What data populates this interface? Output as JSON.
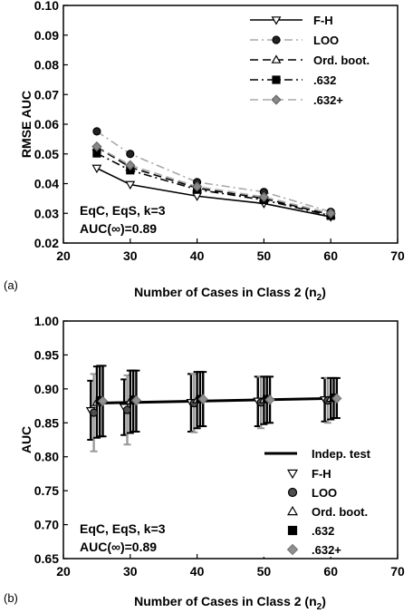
{
  "chart_data": [
    {
      "panel_label": "(a)",
      "type": "line",
      "xlabel": "Number of Cases in Class 2 (n",
      "xlabel_sub": "2",
      "xlabel_close": ")",
      "ylabel": "RMSE AUC",
      "xlim": [
        20,
        70
      ],
      "ylim": [
        0.02,
        0.1
      ],
      "xticks": [
        "20",
        "30",
        "40",
        "50",
        "60",
        "70"
      ],
      "yticks": [
        "0.02",
        "0.03",
        "0.04",
        "0.05",
        "0.06",
        "0.07",
        "0.08",
        "0.09",
        "0.10"
      ],
      "legend_position": "top-right",
      "annotation": [
        "EqC, EqS, k=3",
        "AUC(∞)=0.89"
      ],
      "x": [
        25,
        30,
        40,
        50,
        60
      ],
      "series": [
        {
          "name": "F-H",
          "values": [
            0.0452,
            0.0397,
            0.0358,
            0.0333,
            0.0288
          ],
          "marker": "triangle-down",
          "dash": "solid",
          "color": "#000000"
        },
        {
          "name": "LOO",
          "values": [
            0.0576,
            0.05,
            0.0405,
            0.0372,
            0.0305
          ],
          "marker": "circle",
          "dash": "dashdot",
          "color": "#a8a8a8"
        },
        {
          "name": "Ord. boot.",
          "values": [
            0.0523,
            0.0455,
            0.0385,
            0.035,
            0.0295
          ],
          "marker": "triangle-up",
          "dash": "dashed",
          "color": "#000000"
        },
        {
          "name": ".632",
          "values": [
            0.0502,
            0.0445,
            0.038,
            0.0345,
            0.0292
          ],
          "marker": "square",
          "dash": "dashdot",
          "color": "#000000"
        },
        {
          "name": ".632+",
          "values": [
            0.0525,
            0.0462,
            0.039,
            0.0355,
            0.03
          ],
          "marker": "diamond",
          "dash": "dashed",
          "color": "#a8a8a8"
        }
      ]
    },
    {
      "panel_label": "(b)",
      "type": "scatter",
      "xlabel": "Number of Cases in Class 2 (n",
      "xlabel_sub": "2",
      "xlabel_close": ")",
      "ylabel": "AUC",
      "xlim": [
        20,
        70
      ],
      "ylim": [
        0.65,
        1.0
      ],
      "xticks": [
        "20",
        "30",
        "40",
        "50",
        "60",
        "70"
      ],
      "yticks": [
        "0.65",
        "0.70",
        "0.75",
        "0.80",
        "0.85",
        "0.90",
        "0.95",
        "1.00"
      ],
      "legend_position": "bottom-right",
      "annotation": [
        "EqC, EqS, k=3",
        "AUC(∞)=0.89"
      ],
      "x": [
        25,
        30,
        40,
        50,
        60
      ],
      "indep_test": {
        "name": "Indep. test",
        "values": [
          0.879,
          0.88,
          0.882,
          0.884,
          0.886
        ]
      },
      "series": [
        {
          "name": "F-H",
          "marker": "triangle-down",
          "color": "#ffffff",
          "values": [
            0.868,
            0.873,
            0.88,
            0.882,
            0.884
          ],
          "lower": [
            0.825,
            0.832,
            0.837,
            0.845,
            0.852
          ],
          "upper": [
            0.912,
            0.914,
            0.922,
            0.918,
            0.916
          ]
        },
        {
          "name": "LOO",
          "marker": "circle",
          "color": "#505050",
          "values": [
            0.865,
            0.869,
            0.879,
            0.88,
            0.883
          ],
          "lower": [
            0.808,
            0.818,
            0.836,
            0.842,
            0.85
          ],
          "upper": [
            0.922,
            0.92,
            0.922,
            0.918,
            0.916
          ]
        },
        {
          "name": "Ord. boot.",
          "marker": "triangle-up",
          "color": "#ffffff",
          "values": [
            0.88,
            0.882,
            0.884,
            0.884,
            0.886
          ],
          "lower": [
            0.828,
            0.835,
            0.842,
            0.848,
            0.855
          ],
          "upper": [
            0.933,
            0.927,
            0.925,
            0.918,
            0.916
          ]
        },
        {
          "name": ".632",
          "marker": "square",
          "color": "#000000",
          "values": [
            0.883,
            0.884,
            0.885,
            0.885,
            0.887
          ],
          "lower": [
            0.83,
            0.837,
            0.845,
            0.85,
            0.857
          ],
          "upper": [
            0.934,
            0.927,
            0.925,
            0.918,
            0.916
          ]
        },
        {
          "name": ".632+",
          "marker": "diamond",
          "color": "#909090",
          "values": [
            0.882,
            0.883,
            0.885,
            0.884,
            0.886
          ],
          "lower": [
            0.83,
            0.837,
            0.845,
            0.85,
            0.857
          ],
          "upper": [
            0.934,
            0.927,
            0.925,
            0.918,
            0.916
          ]
        }
      ]
    }
  ]
}
